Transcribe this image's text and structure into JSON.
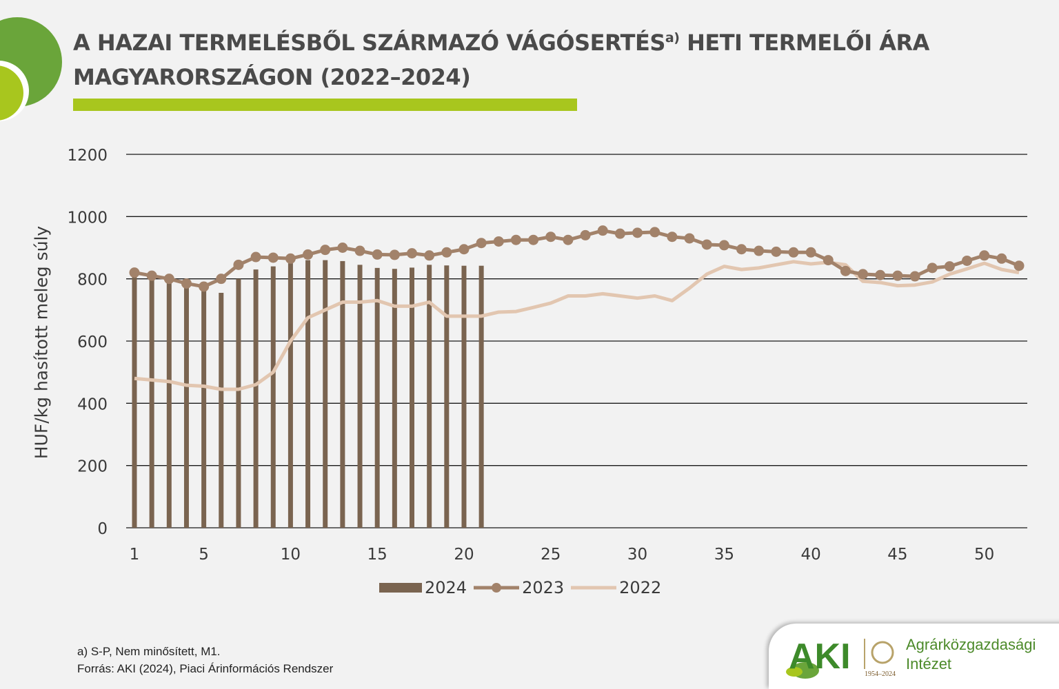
{
  "header": {
    "title_part1": "A HAZAI TERMELÉSBŐL SZÁRMAZÓ VÁGÓSERTÉS",
    "title_sup": "a)",
    "title_part2": " HETI TERMELŐI ÁRA MAGYARORSZÁGON (2022–2024)"
  },
  "colors": {
    "accent_green": "#a8c61e",
    "dark_green": "#6aa53a",
    "bar_2024": "#7a6450",
    "line_2023": "#a2826a",
    "line_2022": "#e2c6b0",
    "grid": "#1a1a1a"
  },
  "chart_data": {
    "type": "bar+line",
    "ylabel": "HUF/kg hasított meleg súly",
    "xlabel": "",
    "ylim": [
      0,
      1200
    ],
    "yticks": [
      0,
      200,
      400,
      600,
      800,
      1000,
      1200
    ],
    "xlim": [
      1,
      52
    ],
    "xticks": [
      1,
      5,
      10,
      15,
      20,
      25,
      30,
      35,
      40,
      45,
      50
    ],
    "grid": true,
    "legend_position": "bottom",
    "series": [
      {
        "name": "2024",
        "kind": "bar",
        "x": [
          1,
          2,
          3,
          4,
          5,
          6,
          7,
          8,
          9,
          10,
          11,
          12,
          13,
          14,
          15,
          16,
          17,
          18,
          19,
          20,
          21
        ],
        "values": [
          810,
          810,
          800,
          797,
          790,
          755,
          800,
          830,
          840,
          850,
          860,
          860,
          857,
          845,
          835,
          832,
          836,
          845,
          843,
          842,
          842
        ]
      },
      {
        "name": "2023",
        "kind": "line-marker",
        "x": [
          1,
          2,
          3,
          4,
          5,
          6,
          7,
          8,
          9,
          10,
          11,
          12,
          13,
          14,
          15,
          16,
          17,
          18,
          19,
          20,
          21,
          22,
          23,
          24,
          25,
          26,
          27,
          28,
          29,
          30,
          31,
          32,
          33,
          34,
          35,
          36,
          37,
          38,
          39,
          40,
          41,
          42,
          43,
          44,
          45,
          46,
          47,
          48,
          49,
          50,
          51,
          52
        ],
        "values": [
          820,
          810,
          800,
          785,
          775,
          800,
          845,
          870,
          868,
          865,
          878,
          893,
          900,
          890,
          878,
          877,
          882,
          875,
          885,
          895,
          915,
          920,
          925,
          925,
          935,
          925,
          940,
          955,
          945,
          948,
          950,
          935,
          930,
          910,
          908,
          895,
          890,
          887,
          885,
          885,
          860,
          825,
          815,
          812,
          810,
          808,
          835,
          840,
          858,
          875,
          865,
          842
        ]
      },
      {
        "name": "2022",
        "kind": "line",
        "x": [
          1,
          2,
          3,
          4,
          5,
          6,
          7,
          8,
          9,
          10,
          11,
          12,
          13,
          14,
          15,
          16,
          17,
          18,
          19,
          20,
          21,
          22,
          23,
          24,
          25,
          26,
          27,
          28,
          29,
          30,
          31,
          32,
          33,
          34,
          35,
          36,
          37,
          38,
          39,
          40,
          41,
          42,
          43,
          44,
          45,
          46,
          47,
          48,
          49,
          50,
          51,
          52
        ],
        "values": [
          480,
          475,
          470,
          458,
          455,
          445,
          445,
          460,
          500,
          600,
          675,
          700,
          725,
          725,
          730,
          712,
          712,
          725,
          680,
          680,
          680,
          693,
          695,
          708,
          722,
          745,
          745,
          752,
          745,
          738,
          745,
          730,
          770,
          815,
          840,
          830,
          835,
          845,
          855,
          848,
          853,
          845,
          792,
          788,
          778,
          780,
          790,
          815,
          832,
          850,
          830,
          820
        ]
      }
    ]
  },
  "footnote": {
    "line1": "a) S-P, Nem minősített, M1.",
    "line2": "Forrás: AKI (2024), Piaci Árinformációs Rendszer"
  },
  "logo": {
    "mark_text": "AKI",
    "years_text": "1954–2024",
    "line1": "Agrárközgazdasági",
    "line2": "Intézet"
  }
}
